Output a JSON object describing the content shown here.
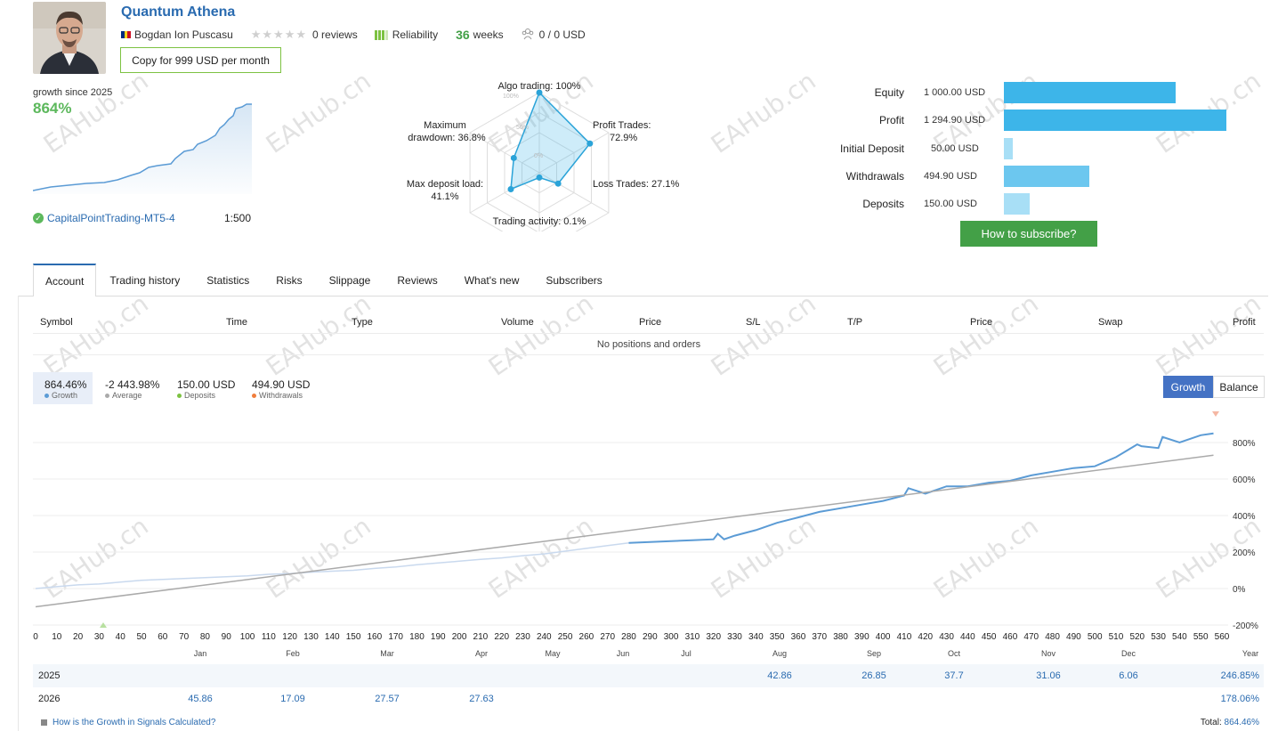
{
  "header": {
    "title": "Quantum Athena",
    "author": "Bogdan Ion Puscasu",
    "stars": "★★★★★",
    "reviews": "0 reviews",
    "reliability": "Reliability",
    "weeks_num": "36",
    "weeks_label": "weeks",
    "subscribers": "0 / 0 USD",
    "copy_button": "Copy for 999 USD per month"
  },
  "growth_mini": {
    "label": "growth since 2025",
    "value": "864%",
    "broker": "CapitalPointTrading-MT5-4",
    "leverage": "1:500"
  },
  "radar": {
    "labels": {
      "algo": "Algo trading: 100%",
      "profit_1": "Profit Trades:",
      "profit_2": "72.9%",
      "loss": "Loss Trades: 27.1%",
      "activity": "Trading activity: 0.1%",
      "load_1": "Max deposit load:",
      "load_2": "41.1%",
      "dd_1": "Maximum",
      "dd_2": "drawdown: 36.8%"
    },
    "ticks": [
      "100%",
      "50%",
      "0%"
    ],
    "values": {
      "algo": 100,
      "profit": 72.9,
      "loss": 27.1,
      "activity": 0.1,
      "load": 41.1,
      "drawdown": 36.8
    }
  },
  "account_bars": [
    {
      "label": "Equity",
      "value": "1 000.00 USD",
      "amount": 1000.0,
      "color": "#3db5e9"
    },
    {
      "label": "Profit",
      "value": "1 294.90 USD",
      "amount": 1294.9,
      "color": "#3db5e9"
    },
    {
      "label": "Initial Deposit",
      "value": "50.00 USD",
      "amount": 50.0,
      "color": "#a8dff6"
    },
    {
      "label": "Withdrawals",
      "value": "494.90 USD",
      "amount": 494.9,
      "color": "#6cc7ef"
    },
    {
      "label": "Deposits",
      "value": "150.00 USD",
      "amount": 150.0,
      "color": "#a8dff6"
    }
  ],
  "subscribe_button": "How to subscribe?",
  "tabs": [
    "Account",
    "Trading history",
    "Statistics",
    "Risks",
    "Slippage",
    "Reviews",
    "What's new",
    "Subscribers"
  ],
  "positions": {
    "columns": [
      "Symbol",
      "Time",
      "Type",
      "Volume",
      "Price",
      "S/L",
      "T/P",
      "Price",
      "Swap",
      "Profit"
    ],
    "empty": "No positions and orders"
  },
  "summary": {
    "growth_value": "864.46%",
    "growth_label": "Growth",
    "average_value": "-2 443.98%",
    "average_label": "Average",
    "deposits_value": "150.00 USD",
    "deposits_label": "Deposits",
    "withdrawals_value": "494.90 USD",
    "withdrawals_label": "Withdrawals"
  },
  "toggle": {
    "growth": "Growth",
    "balance": "Balance"
  },
  "chart_data": {
    "type": "line",
    "x_ticks": [
      "0",
      "10",
      "20",
      "30",
      "40",
      "50",
      "60",
      "70",
      "80",
      "90",
      "100",
      "110",
      "120",
      "130",
      "140",
      "150",
      "160",
      "170",
      "180",
      "190",
      "200",
      "210",
      "220",
      "230",
      "240",
      "250",
      "260",
      "270",
      "280",
      "290",
      "300",
      "310",
      "320",
      "330",
      "340",
      "350",
      "360",
      "370",
      "380",
      "390",
      "400",
      "410",
      "420",
      "430",
      "440",
      "450",
      "460",
      "470",
      "480",
      "490",
      "500",
      "510",
      "520",
      "530",
      "540",
      "550",
      "560"
    ],
    "y_ticks": [
      "800%",
      "600%",
      "400%",
      "200%",
      "0%",
      "-200%"
    ],
    "ylim": [
      -200,
      800
    ],
    "xlim": [
      0,
      560
    ],
    "series": [
      {
        "x": [
          0,
          10,
          20,
          30,
          40,
          50,
          60,
          70,
          80,
          90,
          100,
          110,
          120,
          130,
          140,
          150,
          160,
          170,
          180,
          190,
          200,
          210,
          220,
          230,
          240,
          250,
          260,
          270,
          280
        ],
        "y": [
          0,
          10,
          20,
          25,
          35,
          45,
          50,
          55,
          60,
          65,
          70,
          78,
          82,
          90,
          95,
          100,
          110,
          118,
          130,
          140,
          150,
          160,
          168,
          180,
          190,
          205,
          220,
          235,
          250
        ],
        "color": "#c9d9ee"
      },
      {
        "x": [
          280,
          290,
          300,
          310,
          320,
          322,
          325,
          330,
          340,
          350,
          360,
          370,
          380,
          390,
          400,
          410,
          412,
          420,
          430,
          440,
          450,
          460,
          470,
          480,
          490,
          500,
          510,
          520,
          522,
          530,
          532,
          540,
          550,
          556
        ],
        "y": [
          250,
          255,
          260,
          265,
          270,
          300,
          270,
          290,
          320,
          360,
          390,
          420,
          440,
          460,
          480,
          510,
          550,
          520,
          560,
          560,
          580,
          590,
          620,
          640,
          660,
          670,
          720,
          790,
          780,
          770,
          830,
          800,
          840,
          850
        ],
        "color": "#5b9bd5"
      },
      {
        "x": [
          0,
          556
        ],
        "y": [
          -100,
          730
        ],
        "color": "#aaaaaa"
      }
    ],
    "months": [
      "Jan",
      "Feb",
      "Mar",
      "Apr",
      "May",
      "Jun",
      "Jul",
      "Aug",
      "Sep",
      "Oct",
      "Nov",
      "Dec",
      "Year"
    ]
  },
  "yearly": [
    {
      "year": "2025",
      "cells": [
        "",
        "",
        "",
        "",
        "",
        "",
        "",
        "42.86",
        "26.85",
        "37.7",
        "31.06",
        "6.06"
      ],
      "total": "246.85%"
    },
    {
      "year": "2026",
      "cells": [
        "45.86",
        "17.09",
        "27.57",
        "27.63",
        "",
        "",
        "",
        "",
        "",
        "",
        "",
        ""
      ],
      "total": "178.06%"
    }
  ],
  "footer": {
    "link": "How is the Growth in Signals Calculated?",
    "total_label": "Total:",
    "total_value": "864.46%"
  },
  "watermark": "EAHub.cn"
}
